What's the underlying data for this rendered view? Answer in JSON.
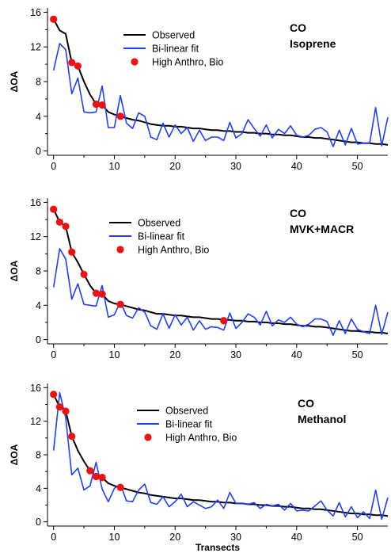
{
  "chart_data": [
    {
      "type": "line",
      "annotation": [
        "CO",
        "Isoprene"
      ],
      "ylabel": "ΔOA",
      "xlabel": "",
      "xlim": [
        -1,
        55
      ],
      "ylim": [
        -0.5,
        16.5
      ],
      "xticks": [
        0,
        10,
        20,
        30,
        40,
        50
      ],
      "yticks": [
        0,
        4,
        8,
        12,
        16
      ],
      "legend_placement": "upper-center",
      "legend": [
        "Observed",
        "Bi-linear fit",
        "High Anthro, Bio"
      ],
      "series": [
        {
          "name": "Observed",
          "style": "line",
          "color": "#000000",
          "x": [
            0,
            1,
            2,
            3,
            4,
            5,
            6,
            7,
            8,
            9,
            10,
            11,
            12,
            13,
            14,
            15,
            16,
            17,
            18,
            19,
            20,
            21,
            22,
            23,
            24,
            25,
            26,
            27,
            28,
            29,
            30,
            31,
            32,
            33,
            34,
            35,
            36,
            37,
            38,
            39,
            40,
            41,
            42,
            43,
            44,
            45,
            46,
            47,
            48,
            49,
            50,
            51,
            52,
            53,
            54,
            55
          ],
          "y": [
            15.2,
            13.9,
            13.5,
            10.2,
            9.8,
            8.0,
            6.5,
            5.4,
            5.3,
            4.5,
            4.2,
            4.0,
            3.8,
            3.6,
            3.5,
            3.3,
            3.1,
            3.0,
            2.9,
            2.9,
            2.8,
            2.8,
            2.7,
            2.6,
            2.6,
            2.5,
            2.4,
            2.4,
            2.3,
            2.3,
            2.2,
            2.2,
            2.1,
            2.1,
            2.0,
            2.0,
            1.9,
            1.9,
            1.8,
            1.8,
            1.7,
            1.6,
            1.6,
            1.5,
            1.5,
            1.4,
            1.3,
            1.2,
            1.1,
            1.0,
            1.0,
            0.9,
            0.9,
            0.8,
            0.8,
            0.7
          ]
        },
        {
          "name": "Bi-linear fit",
          "style": "line",
          "color": "#1f3fff",
          "x": [
            0,
            1,
            2,
            3,
            4,
            5,
            6,
            7,
            8,
            9,
            10,
            11,
            12,
            13,
            14,
            15,
            16,
            17,
            18,
            19,
            20,
            21,
            22,
            23,
            24,
            25,
            26,
            27,
            28,
            29,
            30,
            31,
            32,
            33,
            34,
            35,
            36,
            37,
            38,
            39,
            40,
            41,
            42,
            43,
            44,
            45,
            46,
            47,
            48,
            49,
            50,
            51,
            52,
            53,
            54,
            55
          ],
          "y": [
            9.3,
            12.4,
            11.7,
            6.6,
            8.4,
            4.5,
            4.4,
            4.5,
            7.5,
            2.7,
            2.7,
            6.4,
            3.2,
            2.6,
            4.4,
            4.0,
            1.6,
            1.3,
            3.2,
            1.6,
            3.0,
            2.0,
            2.7,
            1.1,
            2.4,
            1.2,
            1.6,
            1.6,
            1.2,
            3.3,
            1.5,
            2.0,
            3.6,
            2.6,
            1.7,
            3.0,
            1.5,
            2.5,
            2.0,
            2.9,
            1.8,
            1.6,
            1.8,
            2.5,
            2.7,
            2.2,
            0.5,
            2.4,
            0.7,
            2.6,
            0.8,
            0.9,
            0.9,
            5.0,
            0.6,
            3.9
          ]
        },
        {
          "name": "High Anthro, Bio",
          "style": "scatter",
          "color": "#ee1111",
          "x": [
            0,
            3,
            4,
            7,
            8,
            11
          ],
          "y": [
            15.2,
            10.2,
            9.8,
            5.4,
            5.3,
            4.0
          ]
        }
      ]
    },
    {
      "type": "line",
      "annotation": [
        "CO",
        "MVK+MACR"
      ],
      "ylabel": "ΔOA",
      "xlabel": "",
      "xlim": [
        -1,
        55
      ],
      "ylim": [
        -0.5,
        16.5
      ],
      "xticks": [
        0,
        10,
        20,
        30,
        40,
        50
      ],
      "yticks": [
        0,
        4,
        8,
        12,
        16
      ],
      "legend_placement": "upper-center",
      "legend": [
        "Observed",
        "Bi-linear fit",
        "High Anthro, Bio"
      ],
      "series": [
        {
          "name": "Observed",
          "style": "line",
          "color": "#000000",
          "x": [
            0,
            1,
            2,
            3,
            4,
            5,
            6,
            7,
            8,
            9,
            10,
            11,
            12,
            13,
            14,
            15,
            16,
            17,
            18,
            19,
            20,
            21,
            22,
            23,
            24,
            25,
            26,
            27,
            28,
            29,
            30,
            31,
            32,
            33,
            34,
            35,
            36,
            37,
            38,
            39,
            40,
            41,
            42,
            43,
            44,
            45,
            46,
            47,
            48,
            49,
            50,
            51,
            52,
            53,
            54,
            55
          ],
          "y": [
            15.2,
            13.7,
            13.2,
            10.2,
            9.0,
            7.6,
            6.3,
            5.4,
            5.3,
            4.5,
            4.2,
            4.1,
            3.9,
            3.7,
            3.5,
            3.4,
            3.2,
            3.0,
            3.0,
            2.9,
            2.8,
            2.8,
            2.7,
            2.6,
            2.6,
            2.5,
            2.4,
            2.4,
            2.3,
            2.3,
            2.2,
            2.2,
            2.1,
            2.1,
            2.0,
            2.0,
            1.9,
            1.9,
            1.8,
            1.8,
            1.7,
            1.6,
            1.6,
            1.5,
            1.5,
            1.4,
            1.3,
            1.2,
            1.1,
            1.0,
            1.0,
            0.9,
            0.9,
            0.8,
            0.8,
            0.7
          ]
        },
        {
          "name": "Bi-linear fit",
          "style": "line",
          "color": "#1f3fff",
          "x": [
            0,
            1,
            2,
            3,
            4,
            5,
            6,
            7,
            8,
            9,
            10,
            11,
            12,
            13,
            14,
            15,
            16,
            17,
            18,
            19,
            20,
            21,
            22,
            23,
            24,
            25,
            26,
            27,
            28,
            29,
            30,
            31,
            32,
            33,
            34,
            35,
            36,
            37,
            38,
            39,
            40,
            41,
            42,
            43,
            44,
            45,
            46,
            47,
            48,
            49,
            50,
            51,
            52,
            53,
            54,
            55
          ],
          "y": [
            6.1,
            10.6,
            9.4,
            4.7,
            6.5,
            4.1,
            4.0,
            3.9,
            6.3,
            2.6,
            2.9,
            4.4,
            2.8,
            2.5,
            3.7,
            3.2,
            1.6,
            1.2,
            3.0,
            1.3,
            2.9,
            1.7,
            2.6,
            1.1,
            2.2,
            1.2,
            1.5,
            1.4,
            1.1,
            3.1,
            1.3,
            2.0,
            3.0,
            2.6,
            1.7,
            3.3,
            1.6,
            2.3,
            2.0,
            2.6,
            1.8,
            1.5,
            1.8,
            2.4,
            2.4,
            2.1,
            0.5,
            2.2,
            0.7,
            2.4,
            1.2,
            0.9,
            0.7,
            4.0,
            0.6,
            3.2
          ]
        },
        {
          "name": "High Anthro, Bio",
          "style": "scatter",
          "color": "#ee1111",
          "x": [
            0,
            1,
            2,
            3,
            5,
            7,
            8,
            11,
            28
          ],
          "y": [
            15.2,
            13.7,
            13.2,
            10.2,
            7.6,
            5.4,
            5.3,
            4.1,
            2.2
          ]
        }
      ]
    },
    {
      "type": "line",
      "annotation": [
        "CO",
        "Methanol"
      ],
      "ylabel": "ΔOA",
      "xlabel": "Transects",
      "xlim": [
        -1,
        55
      ],
      "ylim": [
        -0.5,
        16.5
      ],
      "xticks": [
        0,
        10,
        20,
        30,
        40,
        50
      ],
      "yticks": [
        0,
        4,
        8,
        12,
        16
      ],
      "legend_placement": "upper-center",
      "legend": [
        "Observed",
        "Bi-linear fit",
        "High Anthro, Bio"
      ],
      "series": [
        {
          "name": "Observed",
          "style": "line",
          "color": "#000000",
          "x": [
            0,
            1,
            2,
            3,
            4,
            5,
            6,
            7,
            8,
            9,
            10,
            11,
            12,
            13,
            14,
            15,
            16,
            17,
            18,
            19,
            20,
            21,
            22,
            23,
            24,
            25,
            26,
            27,
            28,
            29,
            30,
            31,
            32,
            33,
            34,
            35,
            36,
            37,
            38,
            39,
            40,
            41,
            42,
            43,
            44,
            45,
            46,
            47,
            48,
            49,
            50,
            51,
            52,
            53,
            54,
            55
          ],
          "y": [
            15.2,
            13.7,
            13.2,
            10.2,
            8.5,
            7.2,
            6.1,
            5.4,
            5.3,
            4.6,
            4.3,
            4.1,
            3.9,
            3.7,
            3.5,
            3.4,
            3.2,
            3.1,
            3.0,
            2.9,
            2.8,
            2.8,
            2.7,
            2.6,
            2.6,
            2.5,
            2.4,
            2.4,
            2.3,
            2.3,
            2.2,
            2.2,
            2.1,
            2.1,
            2.0,
            2.0,
            1.9,
            1.9,
            1.8,
            1.8,
            1.7,
            1.6,
            1.6,
            1.5,
            1.5,
            1.4,
            1.3,
            1.2,
            1.1,
            1.0,
            1.0,
            0.9,
            0.9,
            0.8,
            0.8,
            0.7
          ]
        },
        {
          "name": "Bi-linear fit",
          "style": "line",
          "color": "#1f3fff",
          "x": [
            0,
            1,
            2,
            3,
            4,
            5,
            6,
            7,
            8,
            9,
            10,
            11,
            12,
            13,
            14,
            15,
            16,
            17,
            18,
            19,
            20,
            21,
            22,
            23,
            24,
            25,
            26,
            27,
            28,
            29,
            30,
            31,
            32,
            33,
            34,
            35,
            36,
            37,
            38,
            39,
            40,
            41,
            42,
            43,
            44,
            45,
            46,
            47,
            48,
            49,
            50,
            51,
            52,
            53,
            54,
            55
          ],
          "y": [
            8.5,
            15.4,
            12.4,
            5.6,
            6.4,
            3.8,
            4.3,
            7.1,
            3.9,
            2.4,
            4.0,
            4.5,
            2.5,
            2.4,
            3.8,
            4.5,
            2.3,
            2.1,
            3.0,
            1.8,
            2.4,
            3.3,
            1.8,
            2.4,
            2.0,
            1.6,
            1.8,
            2.6,
            1.6,
            3.5,
            2.2,
            2.2,
            2.1,
            2.3,
            1.6,
            2.1,
            1.9,
            2.1,
            1.4,
            2.2,
            1.3,
            1.4,
            1.3,
            1.9,
            2.5,
            1.4,
            0.7,
            2.3,
            0.6,
            1.8,
            0.5,
            1.2,
            0.4,
            3.8,
            0.3,
            2.9
          ]
        },
        {
          "name": "High Anthro, Bio",
          "style": "scatter",
          "color": "#ee1111",
          "x": [
            0,
            1,
            2,
            3,
            6,
            7,
            8,
            11
          ],
          "y": [
            15.2,
            13.7,
            13.2,
            10.2,
            6.1,
            5.4,
            5.3,
            4.1
          ]
        }
      ]
    }
  ]
}
